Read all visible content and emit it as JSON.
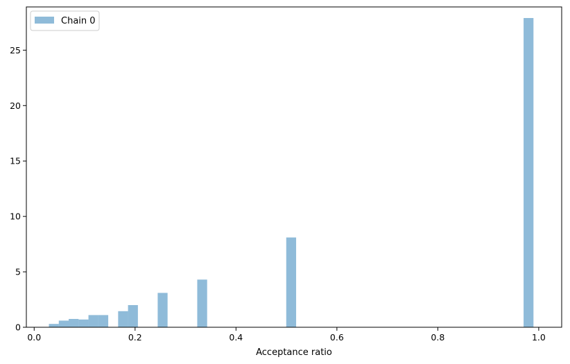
{
  "chart_data": {
    "type": "bar",
    "title": "",
    "xlabel": "Acceptance ratio",
    "ylabel": "",
    "xlim": [
      -0.0155,
      1.0455
    ],
    "ylim": [
      0,
      28.9
    ],
    "grid": false,
    "legend_position": "upper-left",
    "bin_width": 0.0196,
    "colors": {
      "bar": "#1f77b4",
      "bar_opacity": 0.5,
      "frame": "#000000",
      "legend_border": "#cccccc"
    },
    "xticks": [
      0.0,
      0.2,
      0.4,
      0.6,
      0.8,
      1.0
    ],
    "xtick_labels": [
      "0.0",
      "0.2",
      "0.4",
      "0.6",
      "0.8",
      "1.0"
    ],
    "yticks": [
      0,
      5,
      10,
      15,
      20,
      25
    ],
    "ytick_labels": [
      "0",
      "5",
      "10",
      "15",
      "20",
      "25"
    ],
    "series": [
      {
        "name": "Chain 0",
        "bins": [
          {
            "x0": 0.0292,
            "x1": 0.0488,
            "value": 0.3
          },
          {
            "x0": 0.0488,
            "x1": 0.0684,
            "value": 0.6
          },
          {
            "x0": 0.0684,
            "x1": 0.088,
            "value": 0.75
          },
          {
            "x0": 0.088,
            "x1": 0.1076,
            "value": 0.7
          },
          {
            "x0": 0.1076,
            "x1": 0.1272,
            "value": 1.1
          },
          {
            "x0": 0.1272,
            "x1": 0.1468,
            "value": 1.1
          },
          {
            "x0": 0.1664,
            "x1": 0.186,
            "value": 1.45
          },
          {
            "x0": 0.186,
            "x1": 0.2056,
            "value": 2.0
          },
          {
            "x0": 0.2448,
            "x1": 0.2644,
            "value": 3.1
          },
          {
            "x0": 0.3232,
            "x1": 0.3428,
            "value": 4.3
          },
          {
            "x0": 0.4996,
            "x1": 0.5192,
            "value": 8.1
          },
          {
            "x0": 0.97,
            "x1": 0.9896,
            "value": 27.9
          }
        ]
      }
    ]
  }
}
